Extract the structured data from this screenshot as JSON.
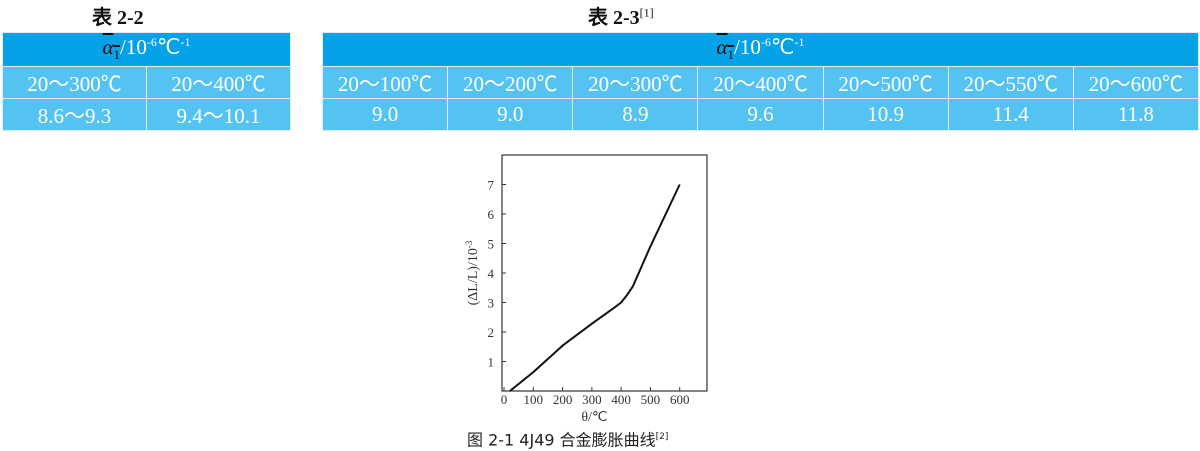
{
  "table_2_2": {
    "caption": "表 2-2",
    "header": {
      "symbol": "α",
      "subscript": "1",
      "unit": "/10",
      "exp1": "-6",
      "unit2": "℃",
      "exp2": "-1"
    },
    "columns": [
      "20～300℃",
      "20～400℃"
    ],
    "values": [
      "8.6～9.3",
      "9.4～10.1"
    ]
  },
  "table_2_3": {
    "caption": "表 2-3",
    "ref": "[1]",
    "header": {
      "symbol": "α",
      "subscript": "1",
      "unit": "/10",
      "exp1": "-6",
      "unit2": "℃",
      "exp2": "-1"
    },
    "columns": [
      "20～100℃",
      "20～200℃",
      "20～300℃",
      "20～400℃",
      "20～500℃",
      "20～550℃",
      "20～600℃"
    ],
    "values": [
      "9.0",
      "9.0",
      "8.9",
      "9.6",
      "10.9",
      "11.4",
      "11.8"
    ]
  },
  "figure": {
    "caption": "图 2-1 4J49 合金膨胀曲线",
    "ref": "[2]"
  },
  "chart_data": {
    "type": "line",
    "xlabel": "θ/℃",
    "ylabel": "(ΔL/L)/10",
    "ylabel_exp": "-3",
    "xlim": [
      0,
      700
    ],
    "ylim": [
      0,
      8
    ],
    "xticks": [
      "0",
      "100",
      "200",
      "300",
      "400",
      "500",
      "600"
    ],
    "yticks": [
      "1",
      "2",
      "3",
      "4",
      "5",
      "6",
      "7"
    ],
    "grid": false,
    "series": [
      {
        "x": [
          20,
          100,
          200,
          300,
          380,
          400,
          420,
          440,
          500,
          600
        ],
        "y": [
          0,
          0.64,
          1.54,
          2.28,
          2.85,
          3.0,
          3.25,
          3.55,
          4.9,
          7.0
        ]
      }
    ]
  }
}
